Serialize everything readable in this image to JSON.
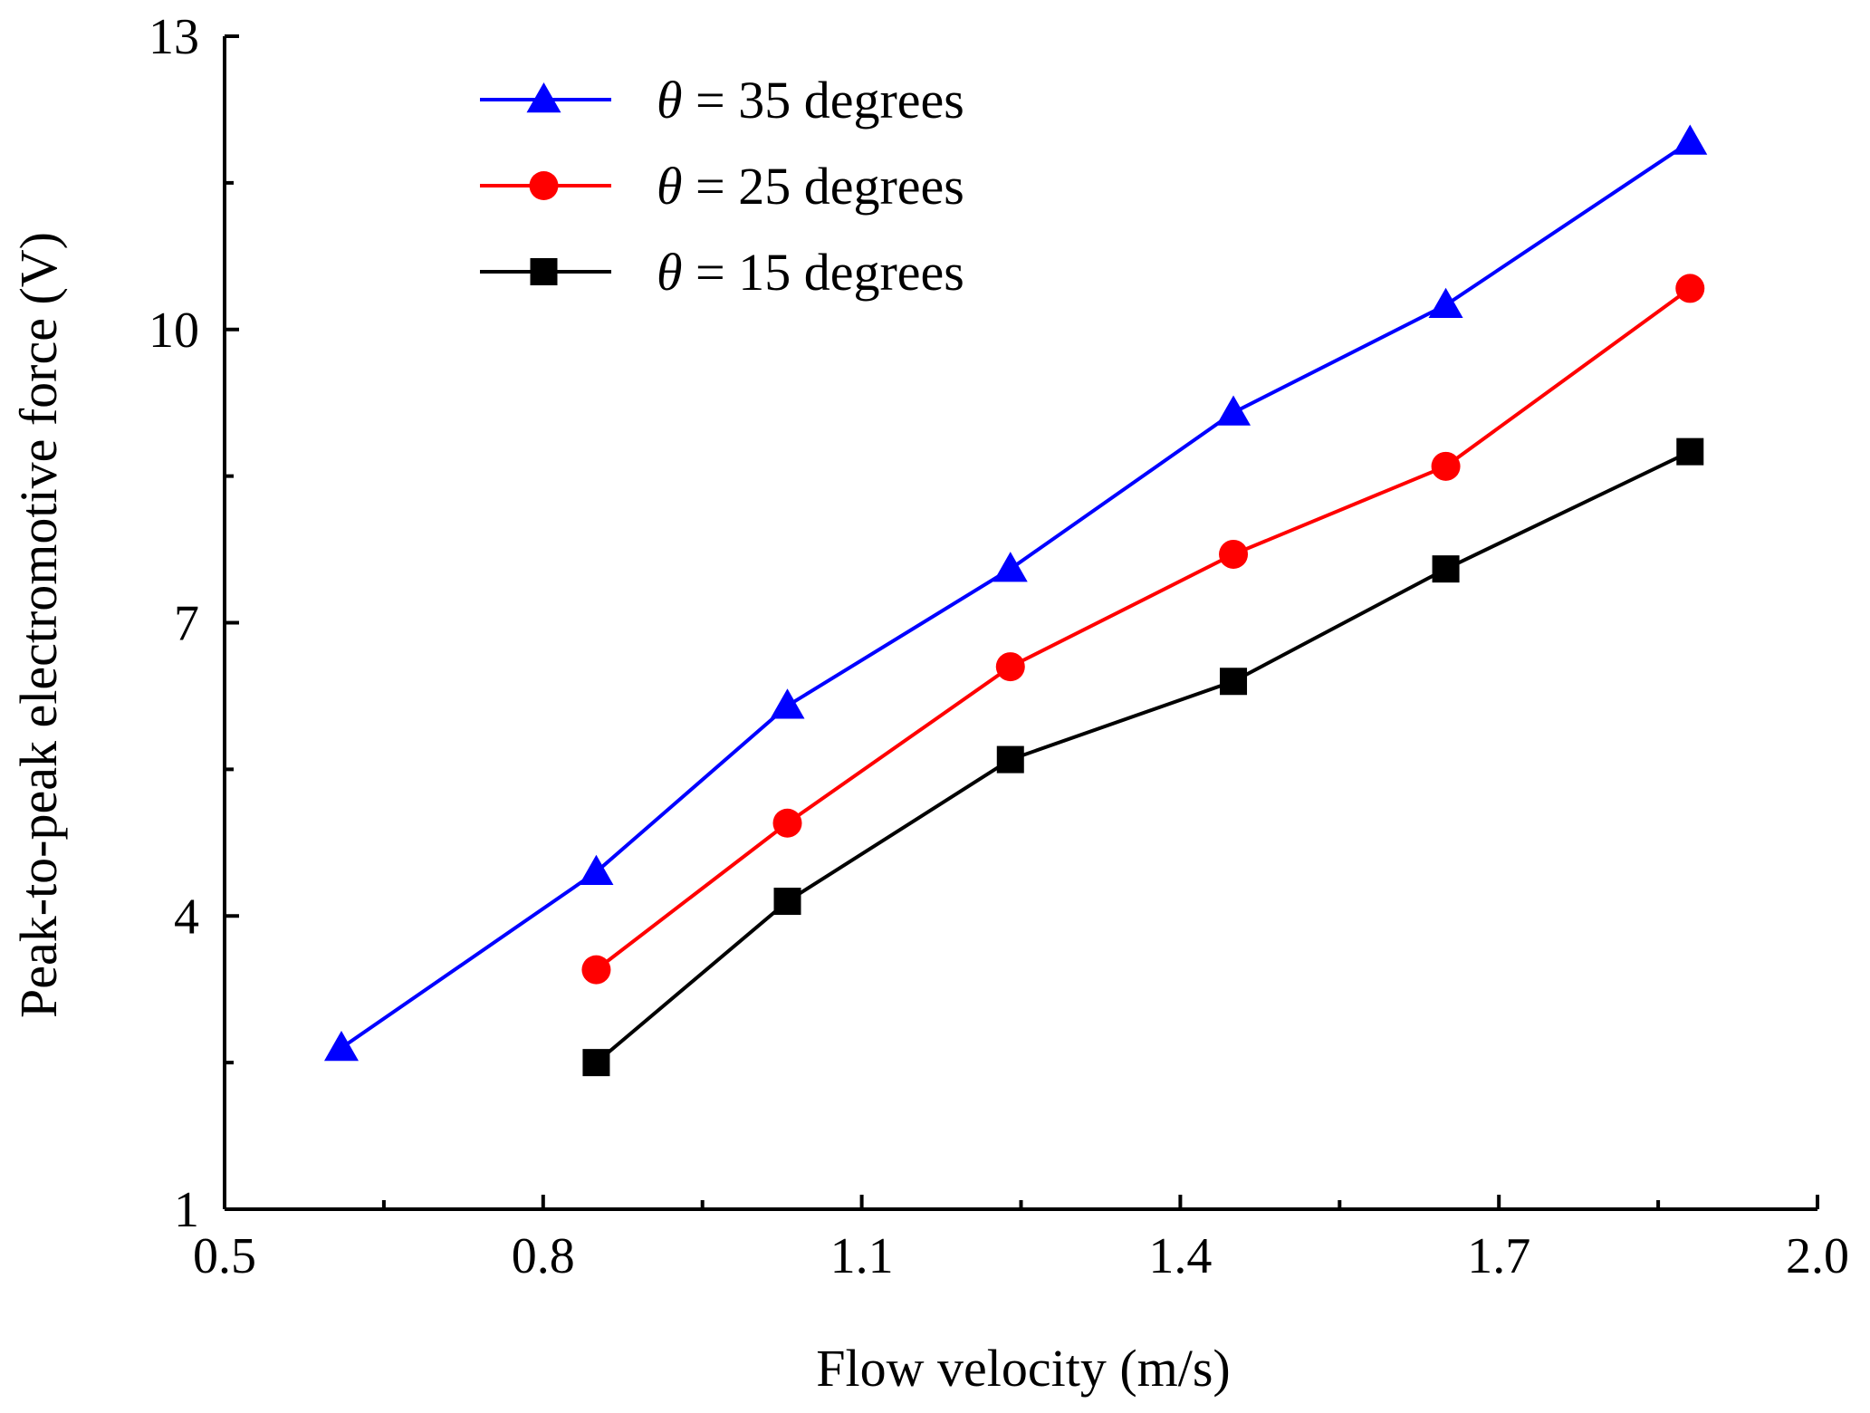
{
  "chart_data": {
    "type": "line",
    "title": "",
    "xlabel": "Flow velocity (m/s)",
    "ylabel": "Peak-to-peak electromotive force (V)",
    "xlim": [
      0.5,
      2.0
    ],
    "ylim": [
      1,
      13
    ],
    "x_ticks": [
      "0.5",
      "0.8",
      "1.1",
      "1.4",
      "1.7",
      "2.0"
    ],
    "y_ticks": [
      "1",
      "4",
      "7",
      "10",
      "13"
    ],
    "grid": false,
    "legend_position": "top-left",
    "series": [
      {
        "name": "θ = 35 degrees",
        "legend_symbol": "θ",
        "legend_text": " = 35 degrees",
        "color": "#0000ff",
        "marker": "triangle",
        "x": [
          0.61,
          0.85,
          1.03,
          1.24,
          1.45,
          1.65,
          1.88
        ],
        "y": [
          2.65,
          4.45,
          6.15,
          7.55,
          9.15,
          10.25,
          11.92
        ]
      },
      {
        "name": "θ = 25 degrees",
        "legend_symbol": "θ",
        "legend_text": " = 25 degrees",
        "color": "#ff0000",
        "marker": "circle",
        "x": [
          0.85,
          1.03,
          1.24,
          1.45,
          1.65,
          1.88
        ],
        "y": [
          3.45,
          4.95,
          6.55,
          7.7,
          8.6,
          10.42
        ]
      },
      {
        "name": "θ = 15 degrees",
        "legend_symbol": "θ",
        "legend_text": " = 15 degrees",
        "color": "#000000",
        "marker": "square",
        "x": [
          0.85,
          1.03,
          1.24,
          1.45,
          1.65,
          1.88
        ],
        "y": [
          2.5,
          4.15,
          5.6,
          6.4,
          7.55,
          8.75
        ]
      }
    ]
  }
}
